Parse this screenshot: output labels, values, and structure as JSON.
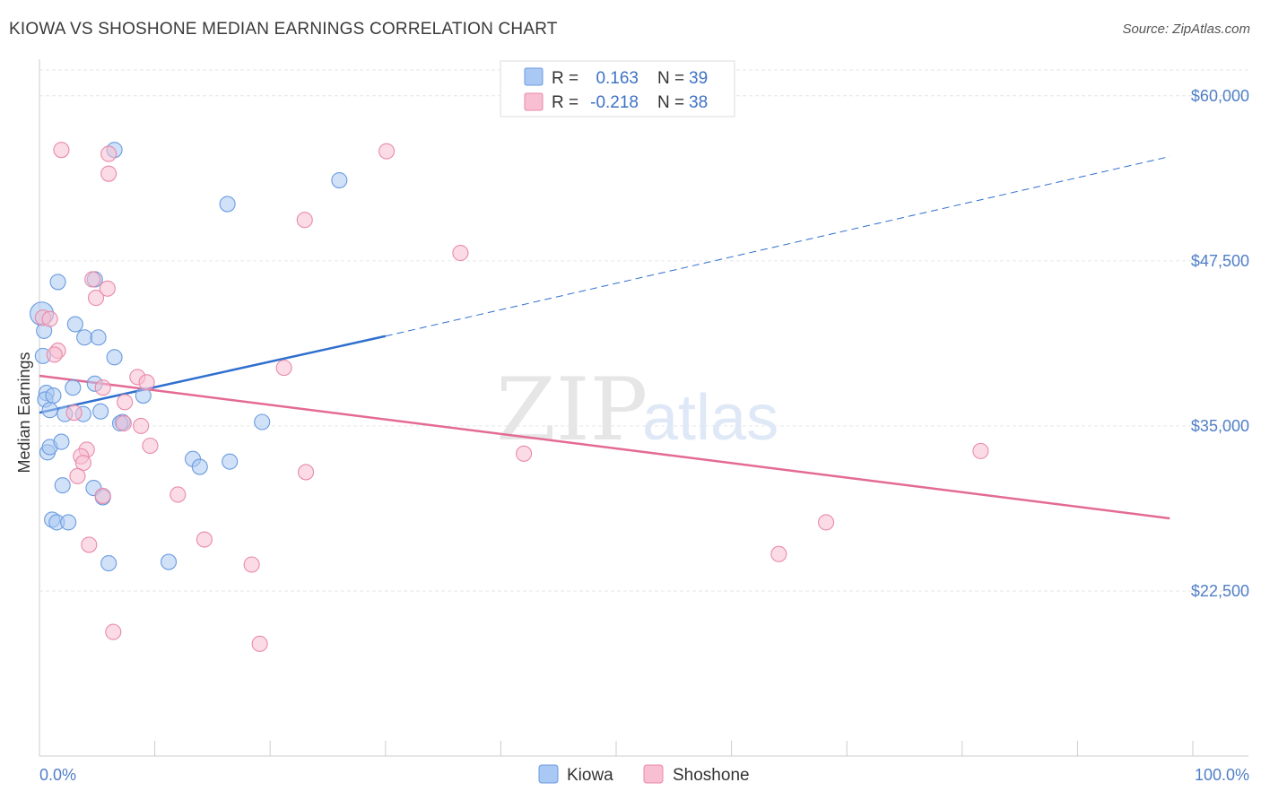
{
  "header": {
    "title": "KIOWA VS SHOSHONE MEDIAN EARNINGS CORRELATION CHART",
    "source": "Source: ZipAtlas.com"
  },
  "watermark": {
    "zip": "ZIP",
    "atlas": "atlas"
  },
  "legend": {
    "rows": [
      {
        "r_label": "R =",
        "r_value": "0.163",
        "n_label": "N =",
        "n_value": "39"
      },
      {
        "r_label": "R =",
        "r_value": "-0.218",
        "n_label": "N =",
        "n_value": "38"
      }
    ]
  },
  "colors": {
    "kiowa_fill": "#a9c8f3",
    "kiowa_stroke": "#6a9be0",
    "kiowa_line": "#2f6fce",
    "shoshone_fill": "#f7bfd1",
    "shoshone_stroke": "#e98aa8",
    "shoshone_line": "#e46a95",
    "tick_text": "#4f7ec7",
    "grid": "#e6e6e6"
  },
  "chart_data": {
    "type": "scatter",
    "title": "KIOWA VS SHOSHONE MEDIAN EARNINGS CORRELATION CHART",
    "xlabel": "",
    "ylabel": "Median Earnings",
    "xlim": [
      0,
      100
    ],
    "ylim": [
      10000,
      62500
    ],
    "x_tick_labels": [
      "0.0%",
      "100.0%"
    ],
    "y_ticks": [
      22500,
      35000,
      47500,
      60000
    ],
    "y_tick_labels": [
      "$22,500",
      "$35,000",
      "$47,500",
      "$60,000"
    ],
    "grid": true,
    "legend_placement": "top-center",
    "series": [
      {
        "name": "Kiowa",
        "r": 0.163,
        "n": 39,
        "points": [
          [
            0.2,
            43500
          ],
          [
            0.4,
            42200
          ],
          [
            0.3,
            40300
          ],
          [
            0.6,
            37500
          ],
          [
            0.5,
            37000
          ],
          [
            1.2,
            37300
          ],
          [
            0.9,
            36200
          ],
          [
            2.2,
            35900
          ],
          [
            0.7,
            33000
          ],
          [
            0.9,
            33400
          ],
          [
            1.9,
            33800
          ],
          [
            2.0,
            30500
          ],
          [
            1.1,
            27900
          ],
          [
            1.5,
            27700
          ],
          [
            2.5,
            27700
          ],
          [
            1.6,
            45900
          ],
          [
            3.1,
            42700
          ],
          [
            3.9,
            41700
          ],
          [
            5.1,
            41700
          ],
          [
            6.5,
            40200
          ],
          [
            2.9,
            37900
          ],
          [
            4.8,
            38200
          ],
          [
            3.8,
            35900
          ],
          [
            5.3,
            36100
          ],
          [
            7.2,
            35300
          ],
          [
            9.0,
            37300
          ],
          [
            4.7,
            30300
          ],
          [
            5.5,
            29600
          ],
          [
            6.0,
            24600
          ],
          [
            11.2,
            24700
          ],
          [
            13.3,
            32500
          ],
          [
            13.9,
            31900
          ],
          [
            16.5,
            32300
          ],
          [
            19.3,
            35300
          ],
          [
            6.5,
            55900
          ],
          [
            16.3,
            51800
          ],
          [
            26.0,
            53600
          ],
          [
            4.8,
            46100
          ],
          [
            7.0,
            35200
          ]
        ]
      },
      {
        "name": "Shoshone",
        "r": -0.218,
        "n": 38,
        "points": [
          [
            0.3,
            43200
          ],
          [
            0.9,
            43100
          ],
          [
            1.6,
            40700
          ],
          [
            1.3,
            40400
          ],
          [
            4.6,
            46100
          ],
          [
            4.9,
            44700
          ],
          [
            5.9,
            45400
          ],
          [
            4.1,
            33200
          ],
          [
            3.6,
            32700
          ],
          [
            3.8,
            32200
          ],
          [
            3.3,
            31200
          ],
          [
            4.3,
            26000
          ],
          [
            5.5,
            29700
          ],
          [
            8.5,
            38700
          ],
          [
            9.3,
            38300
          ],
          [
            7.4,
            36800
          ],
          [
            5.5,
            37900
          ],
          [
            8.8,
            35000
          ],
          [
            9.6,
            33500
          ],
          [
            12.0,
            29800
          ],
          [
            14.3,
            26400
          ],
          [
            18.4,
            24500
          ],
          [
            19.1,
            18500
          ],
          [
            6.4,
            19400
          ],
          [
            23.1,
            31500
          ],
          [
            21.2,
            39400
          ],
          [
            23.0,
            50600
          ],
          [
            1.9,
            55900
          ],
          [
            6.0,
            54100
          ],
          [
            6.0,
            55600
          ],
          [
            30.1,
            55800
          ],
          [
            36.5,
            48100
          ],
          [
            42.0,
            32900
          ],
          [
            64.1,
            25300
          ],
          [
            68.2,
            27700
          ],
          [
            81.6,
            33100
          ],
          [
            3.0,
            36000
          ],
          [
            7.3,
            35200
          ]
        ]
      }
    ],
    "trend_lines": [
      {
        "series": "Kiowa",
        "x_start": 0,
        "y_start": 36000,
        "x_solid_end": 30,
        "y_solid_end": 41800,
        "x_end": 98,
        "y_end": 55400
      },
      {
        "series": "Shoshone",
        "x_start": 0,
        "y_start": 38800,
        "x_end": 98,
        "y_end": 28000
      }
    ]
  }
}
